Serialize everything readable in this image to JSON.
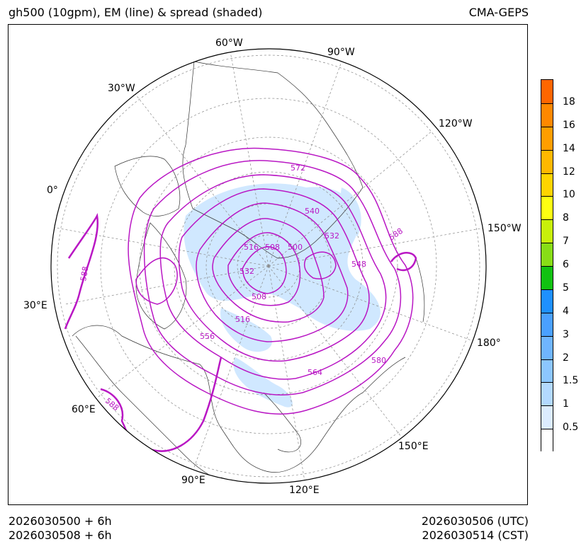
{
  "header": {
    "title": "gh500 (10gpm), EM (line) & spread (shaded)",
    "model": "CMA-GEPS"
  },
  "footer": {
    "init_utc": "2026030500 + 6h",
    "init_cst": "2026030508 + 6h",
    "valid_utc": "2026030506 (UTC)",
    "valid_cst": "2026030514 (CST)"
  },
  "map": {
    "projection": "north-polar-stereographic",
    "longitude_labels": [
      "60°W",
      "90°W",
      "30°W",
      "120°W",
      "0°",
      "150°W",
      "30°E",
      "180°",
      "60°E",
      "150°E",
      "90°E",
      "120°E"
    ],
    "contour_color": "#b917c4",
    "contour_labels": [
      "572",
      "540",
      "532",
      "500",
      "508",
      "516",
      "532",
      "508",
      "516",
      "548",
      "556",
      "564",
      "580",
      "588",
      "588",
      "588"
    ],
    "spread_color": "#c8e4ff"
  },
  "colorbar": {
    "labels": [
      "18",
      "16",
      "14",
      "12",
      "10",
      "8",
      "7",
      "6",
      "5",
      "4",
      "3",
      "2",
      "1.5",
      "1",
      "0.5"
    ],
    "colors": [
      "#ff6600",
      "#ff8800",
      "#ff9e00",
      "#ffb800",
      "#ffd400",
      "#ffff11",
      "#c8f00a",
      "#88dd16",
      "#11c211",
      "#1e90ff",
      "#4aa0ff",
      "#6fb5ff",
      "#8cc6ff",
      "#b3d9ff",
      "#dcecfe",
      "#ffffff"
    ]
  }
}
